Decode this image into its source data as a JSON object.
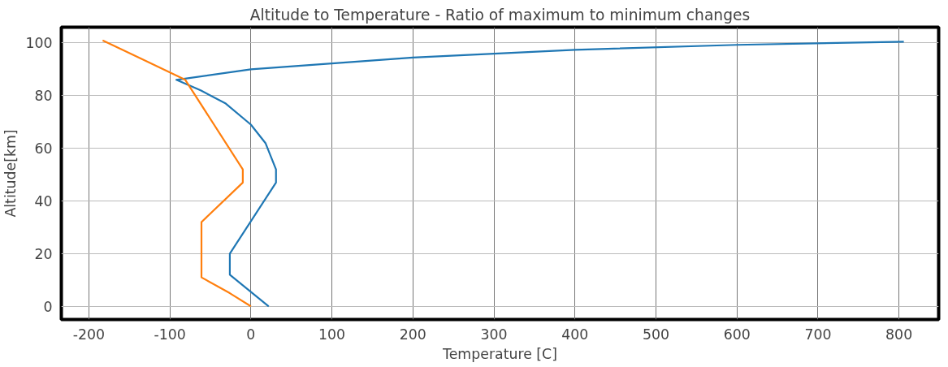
{
  "chart_data": {
    "type": "line",
    "title": "Altitude to Temperature - Ratio of maximum to minimum changes",
    "xlabel": "Temperature [C]",
    "ylabel": "Altitude[km]",
    "xlim": [
      -234,
      849
    ],
    "ylim": [
      -5,
      106
    ],
    "xticks": [
      -200,
      -100,
      0,
      100,
      200,
      300,
      400,
      500,
      600,
      700,
      800
    ],
    "yticks": [
      0,
      20,
      40,
      60,
      80,
      100
    ],
    "grid": true,
    "line_style": "solid",
    "marker": "none",
    "series": [
      {
        "color": "#1f77b4",
        "x": [
          22,
          -26,
          -26,
          31,
          31,
          18,
          0,
          -31,
          -62,
          -92,
          0,
          200,
          400,
          600,
          806
        ],
        "values": [
          0,
          12,
          20,
          47,
          52,
          62,
          69,
          77,
          82,
          86,
          90,
          94.5,
          97.4,
          99.3,
          100.5
        ]
      },
      {
        "color": "#ff7f0e",
        "x": [
          0,
          -26,
          -61,
          -61,
          -10,
          -10,
          -81,
          -135,
          -183
        ],
        "values": [
          0,
          5,
          11,
          32,
          47,
          52,
          86,
          94,
          101
        ]
      }
    ]
  }
}
